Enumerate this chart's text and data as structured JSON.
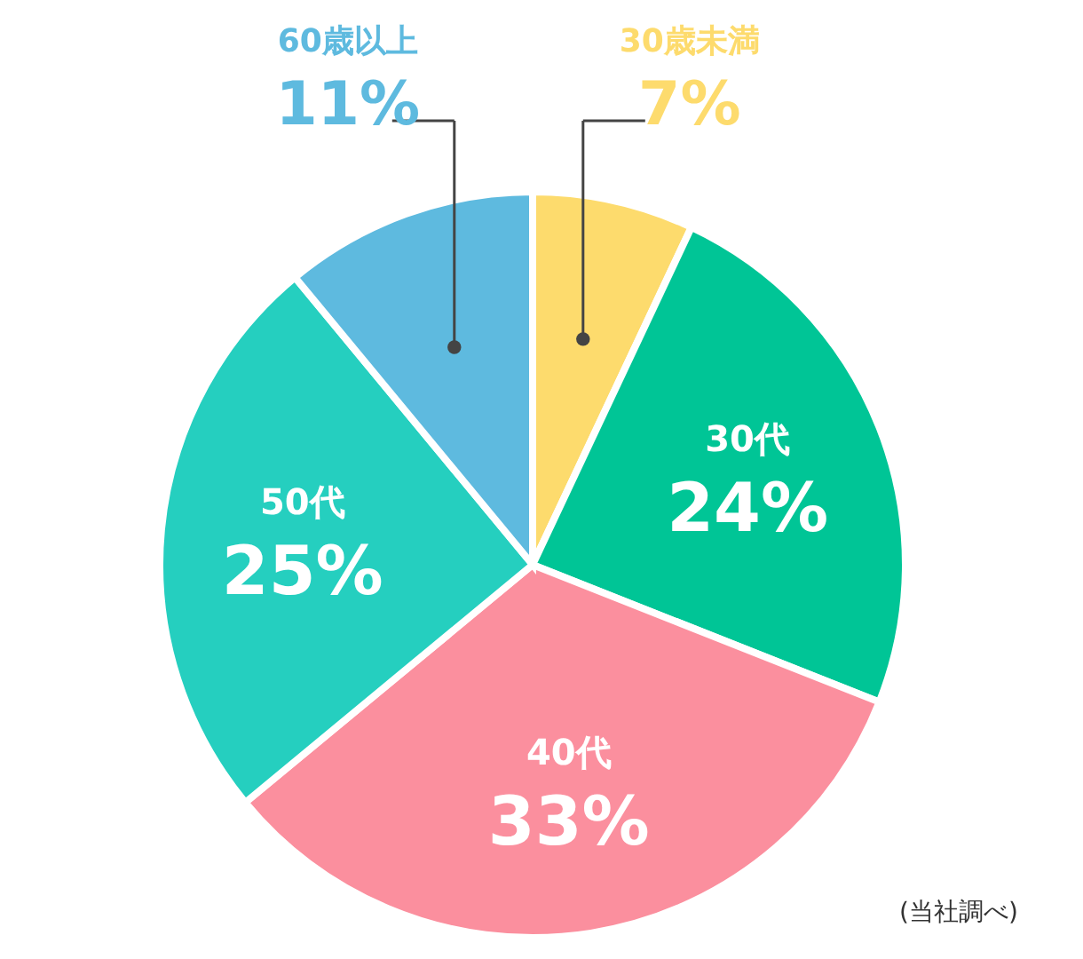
{
  "chart_data": {
    "type": "pie",
    "categories": [
      "30歳未満",
      "30代",
      "40代",
      "50代",
      "60歳以上"
    ],
    "values": [
      7,
      24,
      33,
      25,
      11
    ],
    "colors": [
      "#fddb6d",
      "#00c596",
      "#fb8f9e",
      "#25cfbf",
      "#5ebadf"
    ],
    "value_labels": [
      "7%",
      "24%",
      "33%",
      "25%",
      "11%"
    ],
    "annotations": [
      "(当社調べ)"
    ]
  }
}
